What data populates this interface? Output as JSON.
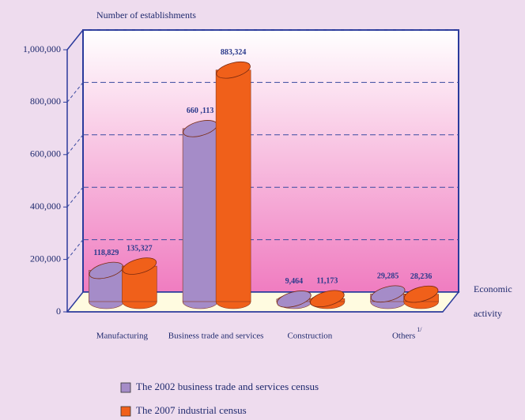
{
  "chart_data": {
    "type": "bar3d",
    "ylabel": "Number of establishments",
    "xlabel": [
      "Economic",
      "activity"
    ],
    "categories": [
      "Manufacturing",
      "Business trade and services",
      "Construction",
      "Others"
    ],
    "category_footnotes": [
      null,
      null,
      null,
      "1/"
    ],
    "series": [
      {
        "name": "The 2002 business trade and services census",
        "color": "#a58cc8",
        "values": [
          118829,
          660113,
          9464,
          29285
        ],
        "value_labels": [
          "118,829",
          "660 ,113",
          "9,464",
          "29,285"
        ]
      },
      {
        "name": "The 2007 industrial census",
        "color": "#f0601a",
        "values": [
          135327,
          883324,
          11173,
          28236
        ],
        "value_labels": [
          "135,327",
          "883,324",
          "11,173",
          "28,236"
        ]
      }
    ],
    "ylim": [
      0,
      1000000
    ],
    "yticks": [
      0,
      {
        "value": 200000,
        "label": "200,000"
      },
      {
        "value": 400000,
        "label": "400,000"
      },
      {
        "value": 600000,
        "label": "600,000"
      },
      {
        "value": 800000,
        "label": "800,000"
      },
      {
        "value": 1000000,
        "label": "1,000,000"
      }
    ],
    "grid": true
  }
}
